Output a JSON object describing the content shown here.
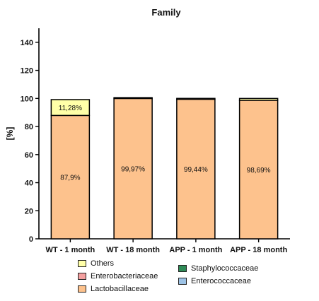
{
  "chart_data": {
    "type": "bar",
    "stacked": true,
    "title": "Family",
    "ylabel": "[%]",
    "xlabel": "",
    "ylim": [
      0,
      150
    ],
    "yticks": [
      0,
      20,
      40,
      60,
      80,
      100,
      120,
      140
    ],
    "categories": [
      "WT - 1 month",
      "WT - 18 month",
      "APP - 1 month",
      "APP - 18 month"
    ],
    "series": [
      {
        "name": "Lactobacillaceae",
        "color": "#FDC28D",
        "values": [
          87.9,
          99.97,
          99.44,
          98.69
        ]
      },
      {
        "name": "Enterobacteriaceae",
        "color": "#F4A0A0",
        "values": [
          0,
          0,
          0,
          0
        ]
      },
      {
        "name": "Staphylococcaceae",
        "color": "#2E8B57",
        "values": [
          0,
          0,
          0,
          0
        ]
      },
      {
        "name": "Enterococcaceae",
        "color": "#9DC3E6",
        "values": [
          0,
          0,
          0,
          0
        ]
      },
      {
        "name": "Others",
        "color": "#FFFFA8",
        "values": [
          11.28,
          0.03,
          0.56,
          1.31
        ]
      }
    ],
    "data_labels": [
      {
        "category": "WT - 1 month",
        "series": "Lactobacillaceae",
        "text": "87,9%"
      },
      {
        "category": "WT - 1 month",
        "series": "Others",
        "text": "11,28%"
      },
      {
        "category": "WT - 18 month",
        "series": "Lactobacillaceae",
        "text": "99,97%"
      },
      {
        "category": "APP - 1 month",
        "series": "Lactobacillaceae",
        "text": "99,44%"
      },
      {
        "category": "APP - 18 month",
        "series": "Lactobacillaceae",
        "text": "98,69%"
      }
    ],
    "legend": {
      "placement": "bottom",
      "items": [
        "Others",
        "Enterobacteriaceae",
        "Lactobacillaceae",
        "Staphylococcaceae",
        "Enterococcaceae"
      ]
    },
    "grid": false
  }
}
